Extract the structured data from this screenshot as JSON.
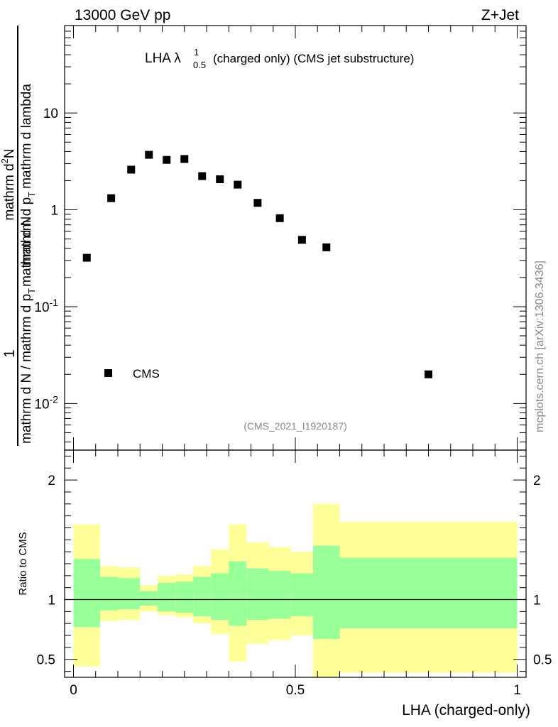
{
  "header": {
    "energy": "13000 GeV pp",
    "process": "Z+Jet"
  },
  "title": {
    "main": "LHA λ",
    "sup": "1",
    "sub": "0.5",
    "rest": "(charged only) (CMS jet substructure)"
  },
  "ylabel": {
    "one": "1",
    "left_part1": "mathrm d N / mathrm d p",
    "left_sub1": "T",
    "left_part2": "mathrm d N",
    "right_part1": "mathrm d",
    "right_sup": "2",
    "right_part2": "N",
    "right_bottom1": "mathrm d p",
    "right_sub2": "T",
    "right_bottom2": "mathrm d lambda"
  },
  "side_note": "mcplots.cern.ch [arXiv:1306.3436]",
  "analysis_id": "(CMS_2021_I1920187)",
  "legend": {
    "label": "CMS"
  },
  "ratio_ylabel": "Ratio to CMS",
  "xlabel": "LHA (charged-only)",
  "colors": {
    "band_inner": "#99ff99",
    "band_outer": "#ffff99",
    "marker": "#000000",
    "note": "#888888"
  },
  "chart_data": [
    {
      "type": "scatter",
      "title": "LHA λ^1_0.5 (charged only) (CMS jet substructure)",
      "series": [
        {
          "name": "CMS",
          "x": [
            0.03,
            0.085,
            0.13,
            0.17,
            0.21,
            0.25,
            0.29,
            0.33,
            0.37,
            0.415,
            0.465,
            0.515,
            0.57,
            0.8
          ],
          "y": [
            0.32,
            1.32,
            2.6,
            3.7,
            3.28,
            3.35,
            2.23,
            2.07,
            1.82,
            1.18,
            0.82,
            0.49,
            0.41,
            0.02
          ]
        }
      ],
      "xlim": [
        -0.02,
        1.02
      ],
      "ylim": [
        0.0033,
        80
      ],
      "yscale": "log",
      "yticks": [
        "10^{-2}",
        "10^{-1}",
        "1",
        "10"
      ],
      "legend_position": "bottom-left"
    },
    {
      "type": "area",
      "ylabel": "Ratio to CMS",
      "xlabel": "LHA (charged-only)",
      "ylim": [
        0.35,
        2.25
      ],
      "xlim": [
        -0.02,
        1.02
      ],
      "xticks": [
        "0",
        "0.5",
        "1"
      ],
      "yticks": [
        "0.5",
        "1",
        "2"
      ],
      "bins": [
        0,
        0.06,
        0.1,
        0.15,
        0.19,
        0.23,
        0.27,
        0.31,
        0.35,
        0.39,
        0.44,
        0.49,
        0.54,
        0.6,
        1.0
      ],
      "inner_low": [
        0.77,
        0.91,
        0.92,
        0.95,
        0.9,
        0.89,
        0.86,
        0.83,
        0.78,
        0.83,
        0.84,
        0.86,
        0.67,
        0.76
      ],
      "inner_high": [
        1.34,
        1.19,
        1.18,
        1.07,
        1.14,
        1.15,
        1.19,
        1.22,
        1.32,
        1.26,
        1.24,
        1.22,
        1.45,
        1.35
      ],
      "outer_low": [
        0.44,
        0.82,
        0.83,
        0.9,
        0.87,
        0.85,
        0.8,
        0.71,
        0.48,
        0.63,
        0.66,
        0.7,
        0.34,
        0.39
      ],
      "outer_high": [
        1.63,
        1.28,
        1.27,
        1.12,
        1.2,
        1.21,
        1.28,
        1.42,
        1.63,
        1.48,
        1.44,
        1.4,
        1.8,
        1.65
      ],
      "reference": 1
    }
  ]
}
